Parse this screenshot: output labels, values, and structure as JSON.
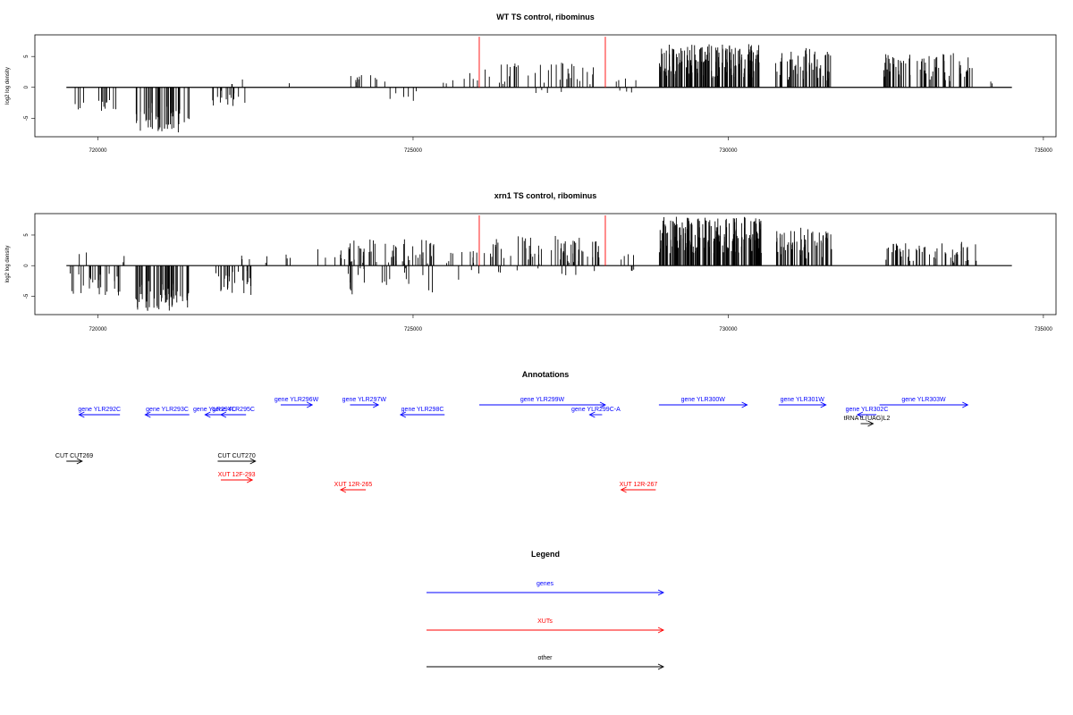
{
  "chart_data": [
    {
      "type": "bar",
      "title": "WT TS control, ribominus",
      "ylabel": "log2 log density",
      "xlim": [
        719000,
        735200
      ],
      "ylim": [
        -8,
        8.5
      ],
      "xticks": [
        720000,
        725000,
        730000,
        735000
      ],
      "xtick_labels": [
        "720000",
        "725000",
        "730000",
        "735000"
      ],
      "yticks": [
        -5,
        0,
        5
      ],
      "ytick_labels": [
        "-5",
        "0",
        "5"
      ],
      "baseline_range": [
        719500,
        734500
      ],
      "marker_color": "#ff0000",
      "markers": [
        726050,
        728050
      ],
      "regions": [
        {
          "range": [
            719550,
            720350
          ],
          "sign": -1,
          "min": 1.5,
          "max": 3.8,
          "count": 14
        },
        {
          "range": [
            720600,
            721450
          ],
          "sign": -1,
          "min": 2.5,
          "max": 7.3,
          "count": 50
        },
        {
          "range": [
            721750,
            722350
          ],
          "sign": -1,
          "min": 0.5,
          "max": 3.2,
          "count": 16
        },
        {
          "range": [
            722100,
            722350
          ],
          "sign": 1,
          "min": 0.3,
          "max": 1.6,
          "count": 3
        },
        {
          "range": [
            723000,
            723050
          ],
          "sign": 1,
          "min": 0.5,
          "max": 0.9,
          "count": 1
        },
        {
          "range": [
            723950,
            724600
          ],
          "sign": 1,
          "min": 0.3,
          "max": 2.0,
          "count": 11
        },
        {
          "range": [
            724550,
            725200
          ],
          "sign": -1,
          "min": 0.5,
          "max": 3.0,
          "count": 6
        },
        {
          "range": [
            725350,
            725650
          ],
          "sign": 1,
          "min": 0.3,
          "max": 1.2,
          "count": 3
        },
        {
          "range": [
            725800,
            726050
          ],
          "sign": 1,
          "min": 0.5,
          "max": 2.4,
          "count": 4
        },
        {
          "range": [
            726100,
            727850
          ],
          "sign": 1,
          "min": 0.3,
          "max": 4.0,
          "count": 30
        },
        {
          "range": [
            726300,
            727600
          ],
          "sign": -1,
          "min": 0.3,
          "max": 1.2,
          "count": 4
        },
        {
          "range": [
            727500,
            727950
          ],
          "sign": 1,
          "min": 0.5,
          "max": 3.8,
          "count": 6
        },
        {
          "range": [
            728000,
            728550
          ],
          "sign": 1,
          "min": 0.3,
          "max": 1.5,
          "count": 4
        },
        {
          "range": [
            728150,
            728600
          ],
          "sign": -1,
          "min": 0.3,
          "max": 1.0,
          "count": 3
        },
        {
          "range": [
            728900,
            730500
          ],
          "sign": 1,
          "min": 1.5,
          "max": 7.0,
          "count": 160
        },
        {
          "range": [
            730750,
            731650
          ],
          "sign": 1,
          "min": 1.0,
          "max": 6.5,
          "count": 55
        },
        {
          "range": [
            732450,
            733900
          ],
          "sign": 1,
          "min": 1.0,
          "max": 5.7,
          "count": 70
        },
        {
          "range": [
            734000,
            734250
          ],
          "sign": 1,
          "min": 0.3,
          "max": 1.3,
          "count": 2
        }
      ]
    },
    {
      "type": "bar",
      "title": "xrn1 TS control, ribominus",
      "ylabel": "log2 log density",
      "xlim": [
        719000,
        735200
      ],
      "ylim": [
        -8,
        8.5
      ],
      "xticks": [
        720000,
        725000,
        730000,
        735000
      ],
      "xtick_labels": [
        "720000",
        "725000",
        "730000",
        "735000"
      ],
      "yticks": [
        -5,
        0,
        5
      ],
      "ytick_labels": [
        "-5",
        "0",
        "5"
      ],
      "baseline_range": [
        719500,
        734500
      ],
      "marker_color": "#ff0000",
      "markers": [
        726050,
        728050
      ],
      "regions": [
        {
          "range": [
            719550,
            720350
          ],
          "sign": -1,
          "min": 1.0,
          "max": 5.0,
          "count": 25
        },
        {
          "range": [
            719650,
            720450
          ],
          "sign": 1,
          "min": 0.3,
          "max": 2.2,
          "count": 4
        },
        {
          "range": [
            720600,
            721500
          ],
          "sign": -1,
          "min": 2.5,
          "max": 7.5,
          "count": 60
        },
        {
          "range": [
            721750,
            722450
          ],
          "sign": -1,
          "min": 0.5,
          "max": 5.0,
          "count": 25
        },
        {
          "range": [
            722200,
            722700
          ],
          "sign": 1,
          "min": 0.3,
          "max": 1.8,
          "count": 5
        },
        {
          "range": [
            722900,
            723950
          ],
          "sign": 1,
          "min": 0.3,
          "max": 2.9,
          "count": 10
        },
        {
          "range": [
            723950,
            725400
          ],
          "sign": 1,
          "min": 0.3,
          "max": 4.4,
          "count": 50
        },
        {
          "range": [
            723950,
            725400
          ],
          "sign": -1,
          "min": 0.3,
          "max": 4.9,
          "count": 20
        },
        {
          "range": [
            725450,
            726050
          ],
          "sign": 1,
          "min": 0.3,
          "max": 2.4,
          "count": 10
        },
        {
          "range": [
            725600,
            726050
          ],
          "sign": -1,
          "min": 0.5,
          "max": 2.3,
          "count": 3
        },
        {
          "range": [
            726100,
            727950
          ],
          "sign": 1,
          "min": 0.3,
          "max": 5.0,
          "count": 60
        },
        {
          "range": [
            726200,
            727900
          ],
          "sign": -1,
          "min": 0.3,
          "max": 1.8,
          "count": 8
        },
        {
          "range": [
            728000,
            728500
          ],
          "sign": 1,
          "min": 0.3,
          "max": 2.0,
          "count": 4
        },
        {
          "range": [
            728250,
            728650
          ],
          "sign": -1,
          "min": 0.3,
          "max": 1.4,
          "count": 3
        },
        {
          "range": [
            728900,
            730550
          ],
          "sign": 1,
          "min": 2.0,
          "max": 8.0,
          "count": 180
        },
        {
          "range": [
            730750,
            731650
          ],
          "sign": 1,
          "min": 1.0,
          "max": 6.2,
          "count": 55
        },
        {
          "range": [
            732500,
            733950
          ],
          "sign": 1,
          "min": 0.3,
          "max": 4.0,
          "count": 55
        }
      ]
    }
  ],
  "annotations": {
    "title": "Annotations",
    "genes_color": "#0000ff",
    "xuts_color": "#ff0000",
    "other_color": "#000000",
    "items": [
      {
        "label": "gene YLR292C",
        "start": 719700,
        "end": 720350,
        "strand": "-",
        "group": "genes",
        "row": 2
      },
      {
        "label": "gene YLR293C",
        "start": 720750,
        "end": 721450,
        "strand": "-",
        "group": "genes",
        "row": 2
      },
      {
        "label": "gene YLR294C",
        "start": 721700,
        "end": 722000,
        "strand": "-",
        "group": "genes",
        "row": 2
      },
      {
        "label": "gene YLR295C",
        "start": 721950,
        "end": 722350,
        "strand": "-",
        "group": "genes",
        "row": 2
      },
      {
        "label": "gene YLR296W",
        "start": 722900,
        "end": 723400,
        "strand": "+",
        "group": "genes",
        "row": 1
      },
      {
        "label": "gene YLR297W",
        "start": 724000,
        "end": 724450,
        "strand": "+",
        "group": "genes",
        "row": 1
      },
      {
        "label": "gene YLR298C",
        "start": 724800,
        "end": 725500,
        "strand": "-",
        "group": "genes",
        "row": 2
      },
      {
        "label": "gene YLR299W",
        "start": 726050,
        "end": 728050,
        "strand": "+",
        "group": "genes",
        "row": 1
      },
      {
        "label": "gene YLR299C-A",
        "start": 727850,
        "end": 727950,
        "strand": "-",
        "group": "genes",
        "row": 2
      },
      {
        "label": "gene YLR300W",
        "start": 728900,
        "end": 730300,
        "strand": "+",
        "group": "genes",
        "row": 1
      },
      {
        "label": "gene YLR301W",
        "start": 730800,
        "end": 731550,
        "strand": "+",
        "group": "genes",
        "row": 1
      },
      {
        "label": "gene YLR302C",
        "start": 732050,
        "end": 732350,
        "strand": "-",
        "group": "genes",
        "row": 2
      },
      {
        "label": "gene YLR303W",
        "start": 732400,
        "end": 733800,
        "strand": "+",
        "group": "genes",
        "row": 1
      },
      {
        "label": "tRNA tL(UAG)L2",
        "start": 732150,
        "end": 732250,
        "strand": "+",
        "group": "other",
        "row": 3
      },
      {
        "label": "CUT CUT269",
        "start": 719500,
        "end": 719750,
        "strand": "+",
        "group": "other",
        "row": 4
      },
      {
        "label": "CUT CUT270",
        "start": 721900,
        "end": 722500,
        "strand": "+",
        "group": "other",
        "row": 4
      },
      {
        "label": "XUT 12F-293",
        "start": 721950,
        "end": 722450,
        "strand": "+",
        "group": "xuts",
        "row": 5
      },
      {
        "label": "XUT 12R-265",
        "start": 723850,
        "end": 724250,
        "strand": "-",
        "group": "xuts",
        "row": 6
      },
      {
        "label": "XUT 12R-267",
        "start": 728300,
        "end": 728850,
        "strand": "-",
        "group": "xuts",
        "row": 6
      }
    ]
  },
  "legend": {
    "title": "Legend",
    "items": [
      {
        "label": "genes",
        "color": "#0000ff"
      },
      {
        "label": "XUTs",
        "color": "#ff0000"
      },
      {
        "label": "other",
        "color": "#000000"
      }
    ]
  }
}
